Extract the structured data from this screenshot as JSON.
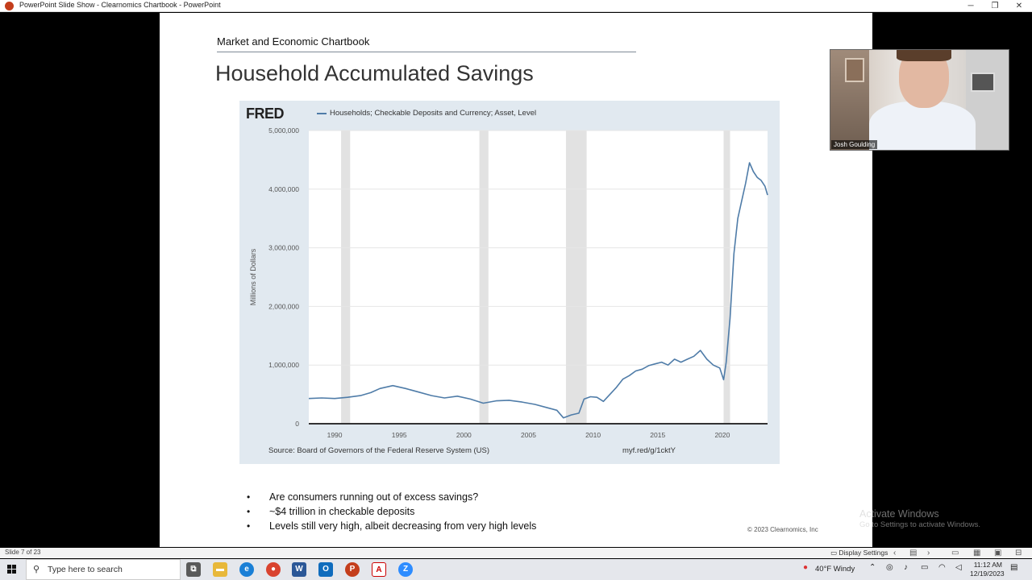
{
  "window": {
    "title": "PowerPoint Slide Show  -  Clearnomics Chartbook - PowerPoint",
    "minimize": "─",
    "restore": "❐",
    "close": "✕"
  },
  "slide": {
    "header": "Market and Economic Chartbook",
    "title": "Household Accumulated Savings",
    "bullets": [
      "Are consumers running out of excess savings?",
      "~$4 trillion in checkable deposits",
      "Levels still very high, albeit decreasing from very high levels"
    ],
    "copyright": "© 2023 Clearnomics, Inc"
  },
  "fred": {
    "logo": "FRED",
    "legend": "Households; Checkable Deposits and Currency; Asset, Level",
    "source": "Source: Board of Governors of the Federal Reserve System (US)",
    "shortlink": "myf.red/g/1cktY"
  },
  "chart_data": {
    "type": "line",
    "title": "Households; Checkable Deposits and Currency; Asset, Level",
    "xlabel": "",
    "ylabel": "Millions of Dollars",
    "xlim": [
      1988,
      2023.5
    ],
    "ylim": [
      0,
      5000000
    ],
    "yticks": [
      0,
      1000000,
      2000000,
      3000000,
      4000000,
      5000000
    ],
    "ytick_labels": [
      "0",
      "1,000,000",
      "2,000,000",
      "3,000,000",
      "4,000,000",
      "5,000,000"
    ],
    "xticks": [
      1990,
      1995,
      2000,
      2005,
      2010,
      2015,
      2020
    ],
    "xtick_labels": [
      "1990",
      "1995",
      "2000",
      "2005",
      "2010",
      "2015",
      "2020"
    ],
    "recessions": [
      [
        1990.5,
        1991.2
      ],
      [
        2001.2,
        2001.9
      ],
      [
        2007.9,
        2009.5
      ],
      [
        2020.1,
        2020.4
      ]
    ],
    "series": [
      {
        "name": "Households; Checkable Deposits and Currency; Asset, Level",
        "color": "#4f7ca8",
        "x": [
          1988,
          1989,
          1990,
          1991,
          1992,
          1992.8,
          1993.5,
          1994.5,
          1995.5,
          1996.5,
          1997.5,
          1998.5,
          1999.5,
          2000.5,
          2001.5,
          2002.5,
          2003.5,
          2004.5,
          2005.5,
          2006.5,
          2007.2,
          2007.7,
          2008.3,
          2008.9,
          2009.3,
          2009.8,
          2010.3,
          2010.8,
          2011.3,
          2011.8,
          2012.3,
          2012.8,
          2013.3,
          2013.8,
          2014.3,
          2014.8,
          2015.3,
          2015.8,
          2016.3,
          2016.8,
          2017.3,
          2017.8,
          2018.3,
          2018.8,
          2019.3,
          2019.8,
          2020.1,
          2020.3,
          2020.6,
          2020.9,
          2021.2,
          2021.5,
          2021.8,
          2022.1,
          2022.4,
          2022.7,
          2023.0,
          2023.3,
          2023.5
        ],
        "values": [
          430000,
          440000,
          430000,
          450000,
          480000,
          530000,
          600000,
          650000,
          600000,
          540000,
          480000,
          440000,
          470000,
          420000,
          350000,
          390000,
          400000,
          370000,
          330000,
          270000,
          230000,
          100000,
          150000,
          180000,
          420000,
          460000,
          450000,
          380000,
          500000,
          620000,
          760000,
          820000,
          900000,
          930000,
          990000,
          1020000,
          1050000,
          1000000,
          1100000,
          1050000,
          1100000,
          1150000,
          1250000,
          1100000,
          1000000,
          950000,
          750000,
          1050000,
          1800000,
          2900000,
          3500000,
          3800000,
          4100000,
          4450000,
          4300000,
          4200000,
          4150000,
          4050000,
          3900000
        ]
      }
    ]
  },
  "webcam": {
    "name": "Josh Goulding"
  },
  "watermark": {
    "line1": "Activate Windows",
    "line2": "Go to Settings to activate Windows."
  },
  "statusbar": {
    "slide_number": "Slide 7 of 23",
    "display_settings": "Display Settings"
  },
  "taskbar": {
    "search_placeholder": "Type here to search",
    "weather": "40°F  Windy",
    "time": "11:12 AM",
    "date": "12/19/2023",
    "apps": [
      "task-view",
      "file-explorer",
      "edge",
      "chrome",
      "word",
      "outlook",
      "powerpoint",
      "acrobat",
      "zoom"
    ]
  }
}
